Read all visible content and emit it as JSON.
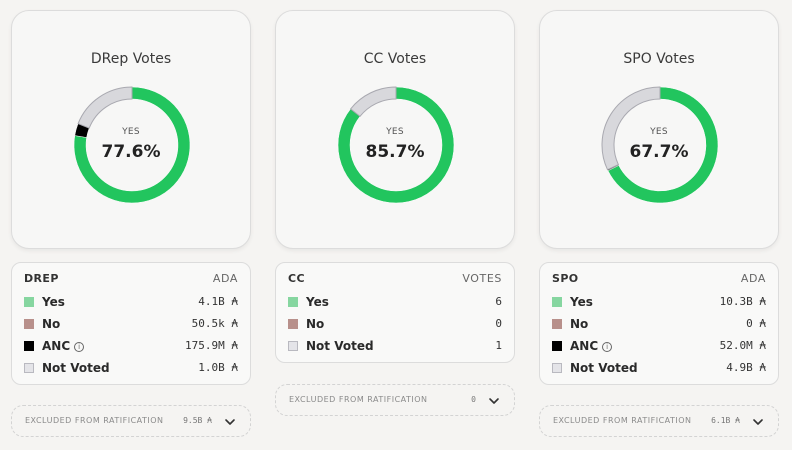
{
  "colors": {
    "yes": "#22c55e",
    "no": "#b8908b",
    "anc": "#000000",
    "not_voted": "#d8d8dc",
    "yes_swatch": "#86d6a0"
  },
  "panels": [
    {
      "title": "DRep Votes",
      "center_label": "YES",
      "center_value": "77.6%",
      "table_name": "DREP",
      "table_unit": "ADA",
      "rows": [
        {
          "label": "Yes",
          "value": "4.1B ₳",
          "swatch": "yes-swatch-icon"
        },
        {
          "label": "No",
          "value": "50.5k ₳",
          "swatch": "no-swatch-icon"
        },
        {
          "label": "ANC",
          "value": "175.9M ₳",
          "swatch": "anc-swatch-icon",
          "info": "info-icon"
        },
        {
          "label": "Not Voted",
          "value": "1.0B ₳",
          "swatch": "not-voted-swatch-icon"
        }
      ],
      "excluded_label": "EXCLUDED FROM RATIFICATION",
      "excluded_value": "9.5B ₳",
      "donut": {
        "yes": 0.776,
        "no": 0.0,
        "anc": 0.034,
        "not_voted": 0.19
      }
    },
    {
      "title": "CC Votes",
      "center_label": "YES",
      "center_value": "85.7%",
      "table_name": "CC",
      "table_unit": "VOTES",
      "rows": [
        {
          "label": "Yes",
          "value": "6",
          "swatch": "yes-swatch-icon"
        },
        {
          "label": "No",
          "value": "0",
          "swatch": "no-swatch-icon"
        },
        {
          "label": "Not Voted",
          "value": "1",
          "swatch": "not-voted-swatch-icon"
        }
      ],
      "excluded_label": "EXCLUDED FROM RATIFICATION",
      "excluded_value": "0",
      "donut": {
        "yes": 0.857,
        "no": 0.0,
        "anc": 0.0,
        "not_voted": 0.143
      }
    },
    {
      "title": "SPO Votes",
      "center_label": "YES",
      "center_value": "67.7%",
      "table_name": "SPO",
      "table_unit": "ADA",
      "rows": [
        {
          "label": "Yes",
          "value": "10.3B ₳",
          "swatch": "yes-swatch-icon"
        },
        {
          "label": "No",
          "value": "0 ₳",
          "swatch": "no-swatch-icon"
        },
        {
          "label": "ANC",
          "value": "52.0M ₳",
          "swatch": "anc-swatch-icon",
          "info": "info-icon"
        },
        {
          "label": "Not Voted",
          "value": "4.9B ₳",
          "swatch": "not-voted-swatch-icon"
        }
      ],
      "excluded_label": "EXCLUDED FROM RATIFICATION",
      "excluded_value": "6.1B ₳",
      "donut": {
        "yes": 0.677,
        "no": 0.0,
        "anc": 0.003,
        "not_voted": 0.32
      }
    }
  ]
}
